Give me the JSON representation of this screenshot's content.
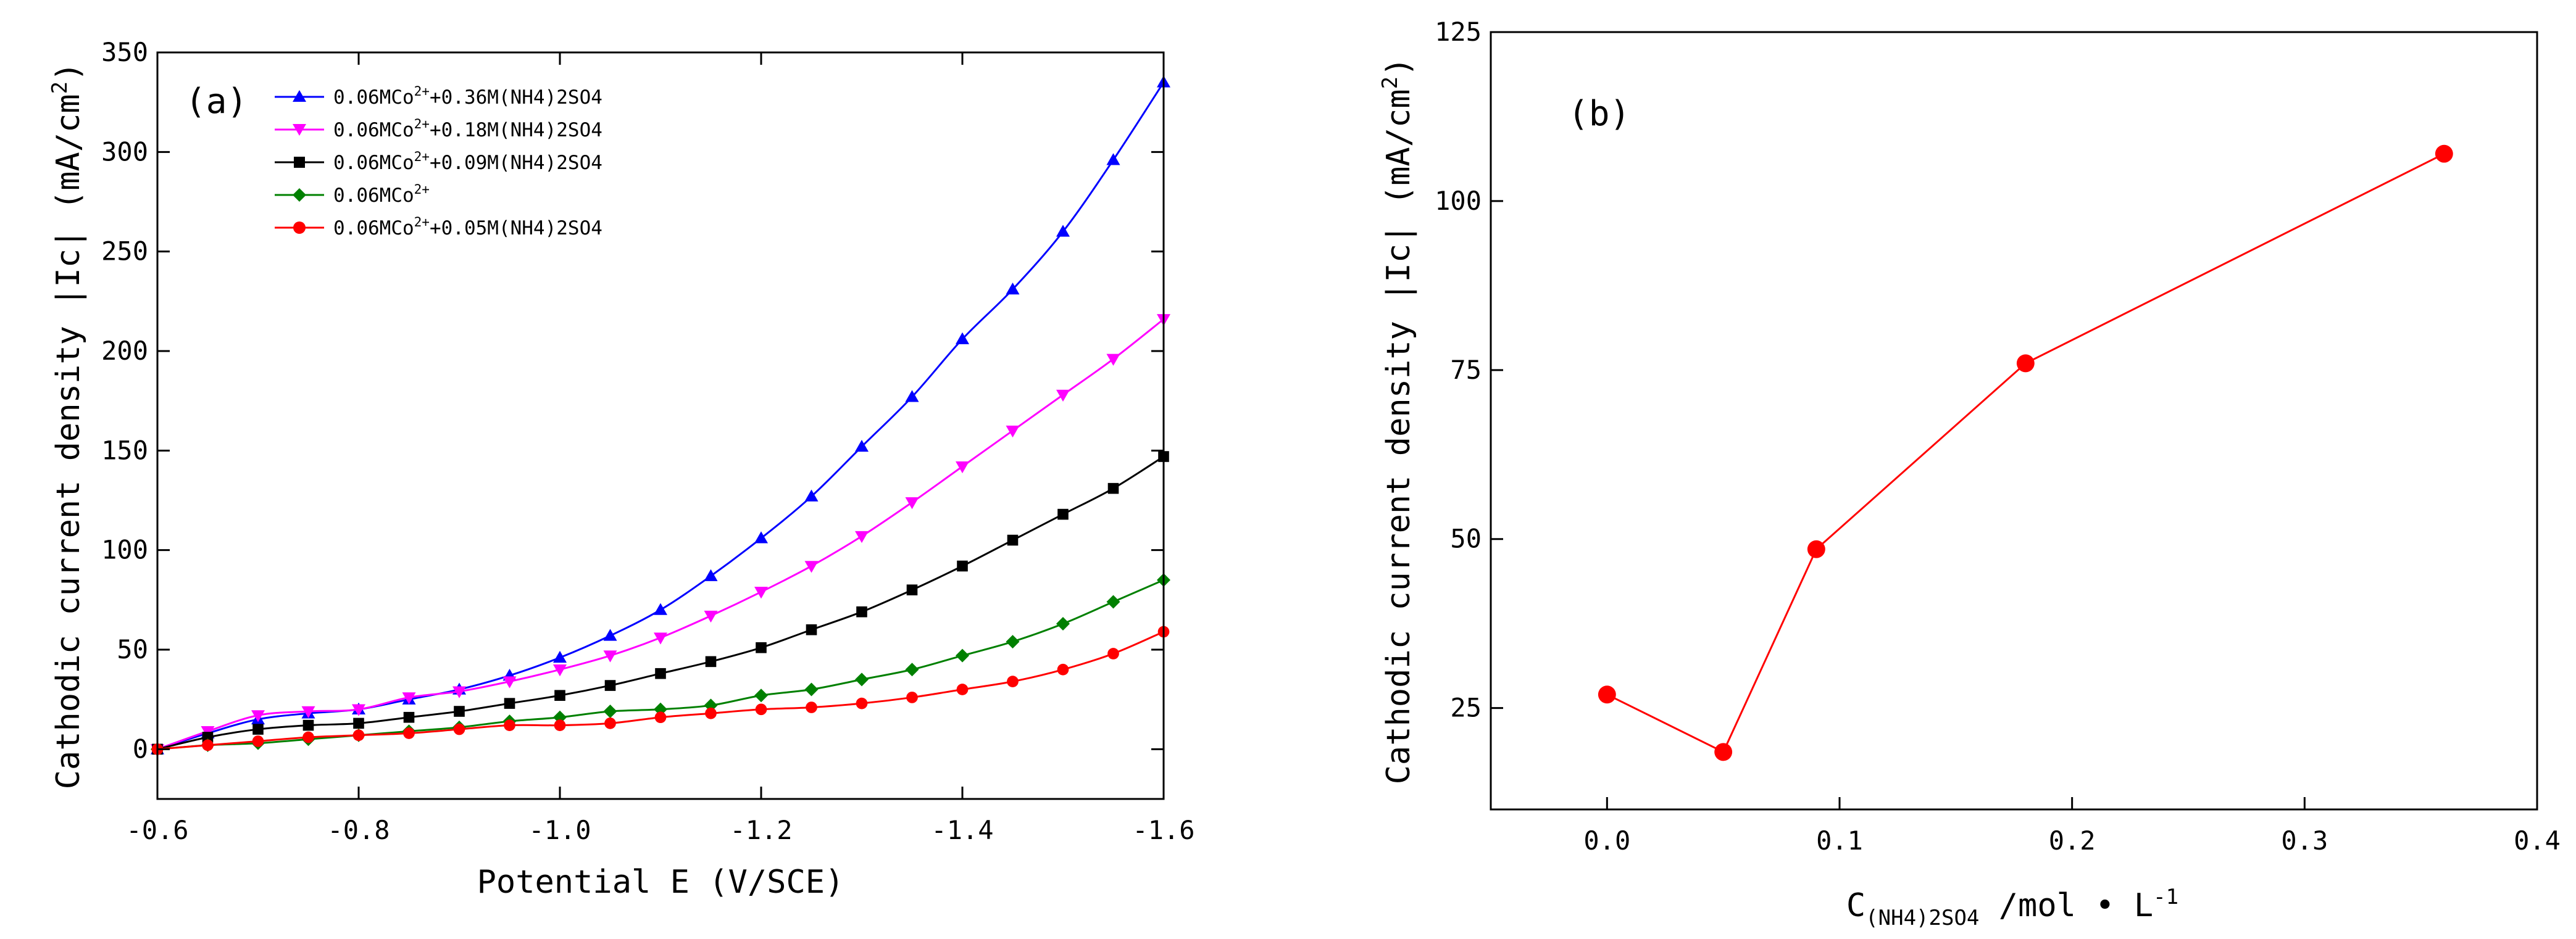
{
  "chart_data": [
    {
      "type": "line",
      "panel_label": "(a)",
      "xlabel": "Potential E (V/SCE)",
      "ylabel": {
        "main": "Cathodic current density |Ic| (mA/cm",
        "sup": "2",
        "close": ")"
      },
      "xlim": [
        -0.6,
        -1.6
      ],
      "ylim": [
        -25,
        350
      ],
      "xticks": [
        "-0.6",
        "-0.8",
        "-1.0",
        "-1.2",
        "-1.4",
        "-1.6"
      ],
      "xtick_values": [
        -0.6,
        -0.8,
        -1.0,
        -1.2,
        -1.4,
        -1.6
      ],
      "yticks": [
        "0",
        "50",
        "100",
        "150",
        "200",
        "250",
        "300",
        "350"
      ],
      "ytick_values": [
        0,
        50,
        100,
        150,
        200,
        250,
        300,
        350
      ],
      "legend_position": "top-left",
      "x": [
        -0.6,
        -0.65,
        -0.7,
        -0.75,
        -0.8,
        -0.85,
        -0.9,
        -0.95,
        -1.0,
        -1.05,
        -1.1,
        -1.15,
        -1.2,
        -1.25,
        -1.3,
        -1.35,
        -1.4,
        -1.45,
        -1.5,
        -1.55,
        -1.6
      ],
      "series": [
        {
          "name": "0.06MCo2+ +0.36M(NH4)2SO4",
          "legend": {
            "pre": "0.06MCo",
            "sup": "2+",
            "post": "+0.36M(NH4)2SO4"
          },
          "color": "#0000ff",
          "marker": "triangle-up",
          "values": [
            0,
            8,
            15,
            18,
            20,
            25,
            30,
            37,
            46,
            57,
            70,
            87,
            106,
            127,
            152,
            177,
            206,
            231,
            260,
            296,
            335
          ]
        },
        {
          "name": "0.06MCo2+ +0.18M(NH4)2SO4",
          "legend": {
            "pre": "0.06MCo",
            "sup": "2+",
            "post": "+0.18M(NH4)2SO4"
          },
          "color": "#ff00ff",
          "marker": "triangle-down",
          "values": [
            0,
            9,
            17,
            19,
            20,
            26,
            29,
            34,
            40,
            47,
            56,
            67,
            79,
            92,
            107,
            124,
            142,
            160,
            178,
            196,
            216
          ]
        },
        {
          "name": "0.06MCo2+ +0.09M(NH4)2SO4",
          "legend": {
            "pre": "0.06MCo",
            "sup": "2+",
            "post": "+0.09M(NH4)2SO4"
          },
          "color": "#000000",
          "marker": "square",
          "values": [
            0,
            6,
            10,
            12,
            13,
            16,
            19,
            23,
            27,
            32,
            38,
            44,
            51,
            60,
            69,
            80,
            92,
            105,
            118,
            131,
            147
          ]
        },
        {
          "name": "0.06MCo2+",
          "legend": {
            "pre": "0.06MCo",
            "sup": "2+",
            "post": ""
          },
          "color": "#008000",
          "marker": "diamond",
          "values": [
            0,
            2,
            3,
            5,
            7,
            9,
            11,
            14,
            16,
            19,
            20,
            22,
            27,
            30,
            35,
            40,
            47,
            54,
            63,
            74,
            85
          ]
        },
        {
          "name": "0.06MCo2+ +0.05M(NH4)2SO4",
          "legend": {
            "pre": "0.06MCo",
            "sup": "2+",
            "post": "+0.05M(NH4)2SO4"
          },
          "color": "#ff0000",
          "marker": "circle",
          "values": [
            0,
            2,
            4,
            6,
            7,
            8,
            10,
            12,
            12,
            13,
            16,
            18,
            20,
            21,
            23,
            26,
            30,
            34,
            40,
            48,
            59
          ]
        }
      ]
    },
    {
      "type": "line",
      "panel_label": "(b)",
      "xlabel": {
        "main": "C",
        "sub": "(NH4)2SO4",
        "rest": " /mol • L",
        "sup": "-1"
      },
      "ylabel": {
        "main": "Cathodic current density |Ic| (mA/cm",
        "sup": "2",
        "close": ")"
      },
      "xlim": [
        -0.05,
        0.4
      ],
      "ylim": [
        10,
        125
      ],
      "xticks": [
        "0.0",
        "0.1",
        "0.2",
        "0.3",
        "0.4"
      ],
      "xtick_values": [
        0.0,
        0.1,
        0.2,
        0.3,
        0.4
      ],
      "yticks": [
        "25",
        "50",
        "75",
        "100",
        "125"
      ],
      "ytick_values": [
        25,
        50,
        75,
        100,
        125
      ],
      "series": [
        {
          "name": "|Ic|",
          "color": "#ff0000",
          "marker": "circle",
          "x": [
            0,
            0.05,
            0.09,
            0.18,
            0.36
          ],
          "values": [
            27,
            18.5,
            48.5,
            76,
            107
          ]
        }
      ]
    }
  ]
}
